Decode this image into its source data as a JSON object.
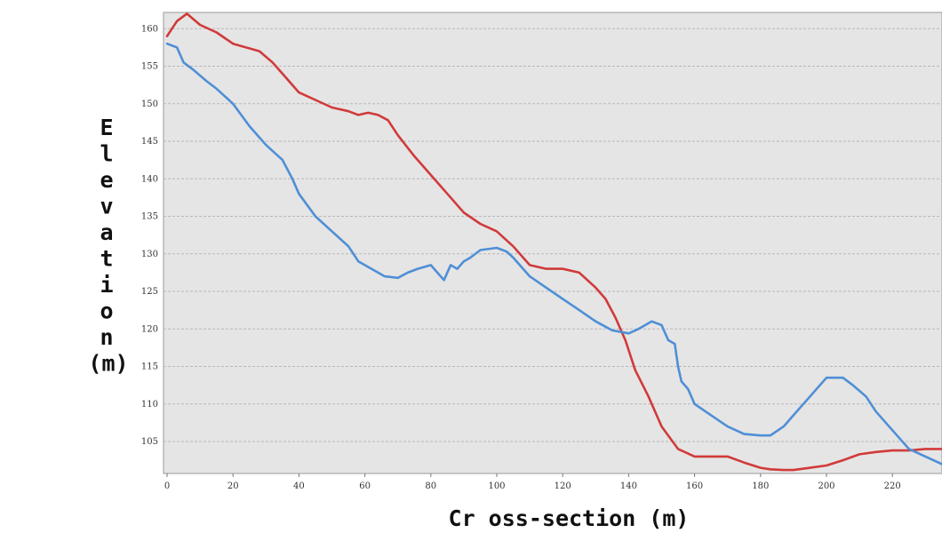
{
  "chart_data": {
    "type": "line",
    "title": "",
    "xlabel": "Cr oss-section (m)",
    "ylabel": "Elevation (m)",
    "xlim": [
      0,
      235
    ],
    "ylim": [
      101,
      162
    ],
    "xticks": [
      0,
      20,
      40,
      60,
      80,
      100,
      120,
      140,
      160,
      180,
      200,
      220
    ],
    "yticks": [
      105,
      110,
      115,
      120,
      125,
      130,
      135,
      140,
      145,
      150,
      155,
      160
    ],
    "grid": "horizontal",
    "legend": "none",
    "series": [
      {
        "color": "#d13a3a",
        "x": [
          0,
          3,
          6,
          10,
          15,
          20,
          28,
          32,
          35,
          40,
          45,
          50,
          55,
          58,
          61,
          64,
          67,
          70,
          75,
          80,
          85,
          90,
          95,
          100,
          105,
          110,
          115,
          120,
          125,
          130,
          133,
          136,
          139,
          142,
          146,
          150,
          155,
          160,
          163,
          166,
          170,
          175,
          180,
          183,
          187,
          190,
          195,
          200,
          205,
          210,
          215,
          220,
          225,
          230,
          235
        ],
        "y": [
          159,
          161,
          162,
          160.5,
          159.5,
          158,
          157,
          155.5,
          154,
          151.5,
          150.5,
          149.5,
          149,
          148.5,
          148.8,
          148.5,
          147.8,
          145.8,
          143,
          140.5,
          138,
          135.5,
          134,
          133,
          131,
          128.5,
          128,
          128,
          127.5,
          125.5,
          124,
          121.5,
          118.5,
          114.5,
          111,
          107,
          104,
          103,
          103,
          103,
          103,
          102.2,
          101.5,
          101.3,
          101.2,
          101.2,
          101.5,
          101.8,
          102.5,
          103.3,
          103.6,
          103.8,
          103.8,
          104,
          104
        ]
      },
      {
        "color": "#4f8fd6",
        "x": [
          0,
          3,
          5,
          8,
          12,
          15,
          20,
          25,
          30,
          35,
          38,
          40,
          45,
          50,
          55,
          58,
          62,
          66,
          70,
          73,
          76,
          80,
          82,
          84,
          86,
          88,
          90,
          92,
          95,
          100,
          103,
          105,
          110,
          115,
          120,
          125,
          130,
          135,
          140,
          143,
          145,
          147,
          150,
          152,
          154,
          155,
          156,
          158,
          160,
          165,
          170,
          175,
          180,
          183,
          187,
          190,
          195,
          200,
          205,
          208,
          212,
          215,
          220,
          225,
          230,
          235
        ],
        "y": [
          158,
          157.5,
          155.5,
          154.5,
          153,
          152,
          150,
          147,
          144.5,
          142.5,
          140,
          138,
          135,
          133,
          131,
          129,
          128,
          127,
          126.8,
          127.5,
          128,
          128.5,
          127.5,
          126.5,
          128.5,
          128,
          129,
          129.5,
          130.5,
          130.8,
          130.3,
          129.5,
          127,
          125.5,
          124,
          122.5,
          121,
          119.8,
          119.4,
          120,
          120.5,
          121,
          120.5,
          118.5,
          118,
          115,
          113,
          112,
          110,
          108.5,
          107,
          106,
          105.8,
          105.8,
          107,
          108.5,
          111,
          113.5,
          113.5,
          112.5,
          111,
          109,
          106.5,
          104,
          103,
          102
        ]
      }
    ]
  }
}
